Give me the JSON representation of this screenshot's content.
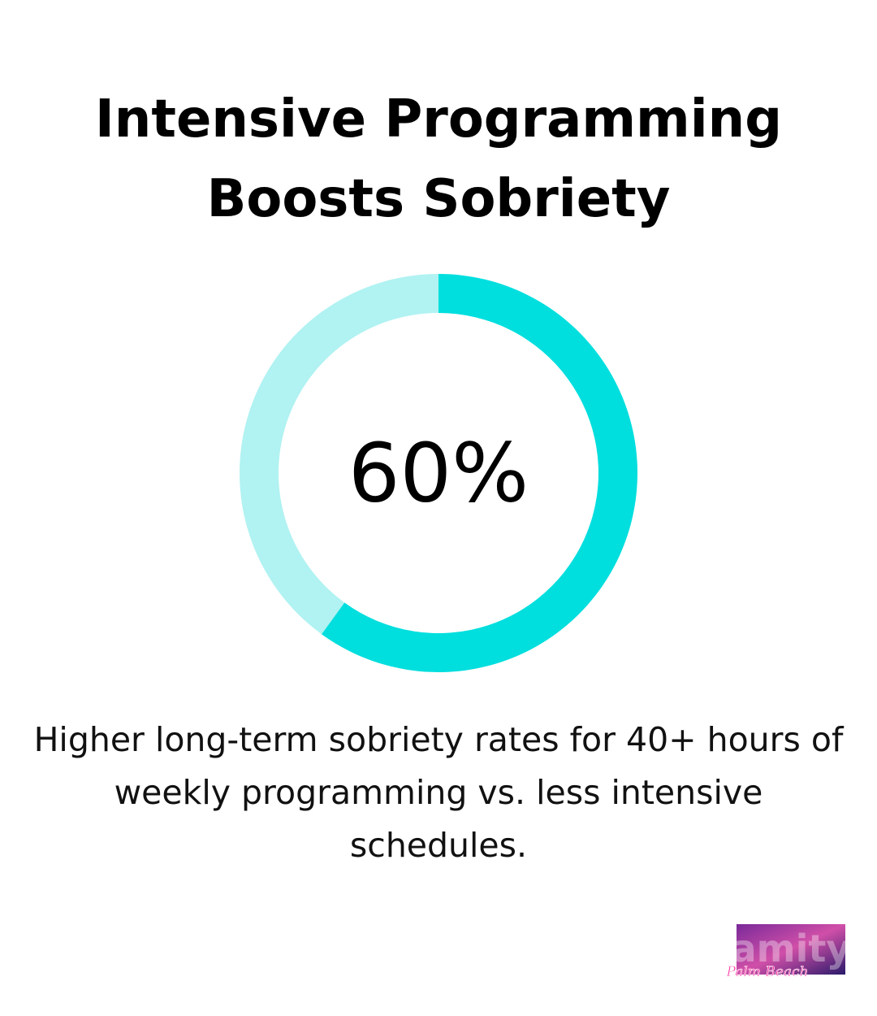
{
  "title": "Intensive Programming Boosts Sobriety",
  "description": "Higher long-term sobriety rates for 40+ hours of weekly programming vs. less intensive schedules.",
  "logo": {
    "text": "amity",
    "subtext": "Palm Beach"
  },
  "chart_data": {
    "type": "pie",
    "variant": "donut",
    "values": [
      60,
      40
    ],
    "center_label": "60%",
    "colors": [
      "#00DEDE",
      "#B1F2F2"
    ]
  }
}
